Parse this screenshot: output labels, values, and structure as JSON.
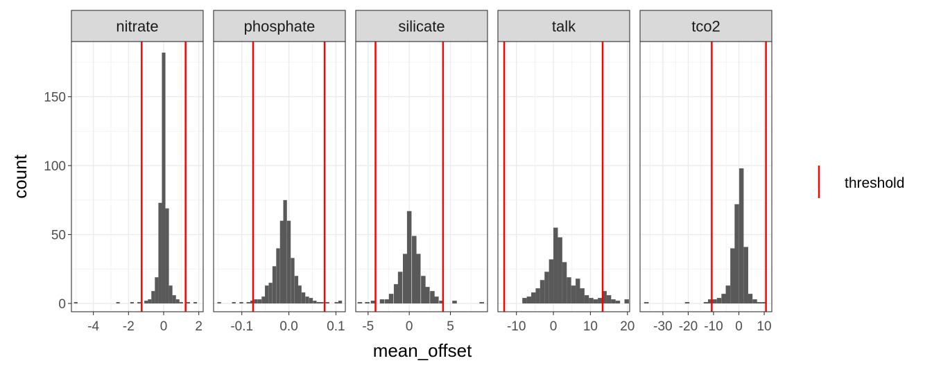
{
  "chart_data": {
    "type": "bar",
    "subtype": "faceted-histogram",
    "xlabel": "mean_offset",
    "ylabel": "count",
    "ylim": [
      -6,
      190
    ],
    "y_ticks": [
      0,
      50,
      100,
      150
    ],
    "y_tick_labels": [
      "0",
      "50",
      "100",
      "150"
    ],
    "bar_color": "#595959",
    "threshold_color": "#ff0000",
    "grid": true,
    "legend": {
      "position": "right",
      "entries": [
        {
          "label": "threshold",
          "symbol": "vertical-line",
          "color": "#ff0000"
        }
      ]
    },
    "facets": [
      {
        "name": "nitrate",
        "xlim": [
          -5.25,
          2.25
        ],
        "x_ticks": [
          -4,
          -2,
          0,
          2
        ],
        "x_tick_labels": [
          "-4",
          "-2",
          "0",
          "2"
        ],
        "thresholds": [
          -1.25,
          1.25
        ],
        "bin_width": 0.2,
        "bins": [
          {
            "x": -5.0,
            "count": 1
          },
          {
            "x": -2.6,
            "count": 1
          },
          {
            "x": -1.8,
            "count": 1
          },
          {
            "x": -1.4,
            "count": 1
          },
          {
            "x": -1.0,
            "count": 2
          },
          {
            "x": -0.8,
            "count": 3
          },
          {
            "x": -0.6,
            "count": 9
          },
          {
            "x": -0.4,
            "count": 19
          },
          {
            "x": -0.2,
            "count": 73
          },
          {
            "x": 0.0,
            "count": 182
          },
          {
            "x": 0.2,
            "count": 69
          },
          {
            "x": 0.4,
            "count": 13
          },
          {
            "x": 0.6,
            "count": 6
          },
          {
            "x": 0.8,
            "count": 3
          },
          {
            "x": 1.0,
            "count": 1
          },
          {
            "x": 1.4,
            "count": 1
          },
          {
            "x": 1.8,
            "count": 1
          }
        ]
      },
      {
        "name": "phosphate",
        "xlim": [
          -0.16,
          0.12
        ],
        "x_ticks": [
          -0.1,
          0.0,
          0.1
        ],
        "x_tick_labels": [
          "-0.1",
          "0.0",
          "0.1"
        ],
        "thresholds": [
          -0.076,
          0.076
        ],
        "bin_width": 0.0078,
        "bins": [
          {
            "x": -0.148,
            "count": 1
          },
          {
            "x": -0.117,
            "count": 1
          },
          {
            "x": -0.101,
            "count": 1
          },
          {
            "x": -0.086,
            "count": 1
          },
          {
            "x": -0.078,
            "count": 2
          },
          {
            "x": -0.07,
            "count": 3
          },
          {
            "x": -0.062,
            "count": 3
          },
          {
            "x": -0.054,
            "count": 5
          },
          {
            "x": -0.047,
            "count": 13
          },
          {
            "x": -0.039,
            "count": 15
          },
          {
            "x": -0.031,
            "count": 27
          },
          {
            "x": -0.023,
            "count": 40
          },
          {
            "x": -0.015,
            "count": 60
          },
          {
            "x": -0.008,
            "count": 75
          },
          {
            "x": 0.0,
            "count": 60
          },
          {
            "x": 0.008,
            "count": 33
          },
          {
            "x": 0.016,
            "count": 20
          },
          {
            "x": 0.023,
            "count": 13
          },
          {
            "x": 0.031,
            "count": 8
          },
          {
            "x": 0.039,
            "count": 5
          },
          {
            "x": 0.047,
            "count": 4
          },
          {
            "x": 0.055,
            "count": 2
          },
          {
            "x": 0.063,
            "count": 1
          },
          {
            "x": 0.07,
            "count": 1
          },
          {
            "x": 0.082,
            "count": 1
          },
          {
            "x": 0.101,
            "count": 1
          },
          {
            "x": 0.109,
            "count": 2
          }
        ]
      },
      {
        "name": "silicate",
        "xlim": [
          -6.5,
          9.5
        ],
        "x_ticks": [
          -5,
          0,
          5
        ],
        "x_tick_labels": [
          "-5",
          "0",
          "5"
        ],
        "thresholds": [
          -4.1,
          4.1
        ],
        "bin_width": 0.55,
        "bins": [
          {
            "x": -6.0,
            "count": 1
          },
          {
            "x": -5.1,
            "count": 1
          },
          {
            "x": -4.4,
            "count": 2
          },
          {
            "x": -3.3,
            "count": 3
          },
          {
            "x": -2.7,
            "count": 3
          },
          {
            "x": -2.2,
            "count": 7
          },
          {
            "x": -1.6,
            "count": 14
          },
          {
            "x": -1.1,
            "count": 23
          },
          {
            "x": -0.5,
            "count": 36
          },
          {
            "x": 0.0,
            "count": 67
          },
          {
            "x": 0.6,
            "count": 49
          },
          {
            "x": 1.1,
            "count": 36
          },
          {
            "x": 1.7,
            "count": 20
          },
          {
            "x": 2.2,
            "count": 12
          },
          {
            "x": 2.8,
            "count": 9
          },
          {
            "x": 3.3,
            "count": 5
          },
          {
            "x": 3.9,
            "count": 2
          },
          {
            "x": 5.5,
            "count": 2
          },
          {
            "x": 8.8,
            "count": 1
          }
        ]
      },
      {
        "name": "talk",
        "xlim": [
          -15,
          20.6
        ],
        "x_ticks": [
          -10,
          0,
          10,
          20
        ],
        "x_tick_labels": [
          "-10",
          "0",
          "10",
          "20"
        ],
        "thresholds": [
          -13.3,
          13.3
        ],
        "bin_width": 1.2,
        "bins": [
          {
            "x": -7.8,
            "count": 4
          },
          {
            "x": -6.6,
            "count": 5
          },
          {
            "x": -5.4,
            "count": 8
          },
          {
            "x": -4.2,
            "count": 11
          },
          {
            "x": -3.0,
            "count": 17
          },
          {
            "x": -1.8,
            "count": 23
          },
          {
            "x": -0.6,
            "count": 32
          },
          {
            "x": 0.6,
            "count": 55
          },
          {
            "x": 1.8,
            "count": 48
          },
          {
            "x": 3.0,
            "count": 30
          },
          {
            "x": 4.2,
            "count": 19
          },
          {
            "x": 5.4,
            "count": 13
          },
          {
            "x": 6.6,
            "count": 18
          },
          {
            "x": 7.8,
            "count": 11
          },
          {
            "x": 9.0,
            "count": 6
          },
          {
            "x": 10.2,
            "count": 4
          },
          {
            "x": 11.4,
            "count": 3
          },
          {
            "x": 12.6,
            "count": 4
          },
          {
            "x": 13.8,
            "count": 9
          },
          {
            "x": 15.0,
            "count": 6
          },
          {
            "x": 16.2,
            "count": 3
          },
          {
            "x": 17.4,
            "count": 2
          },
          {
            "x": 19.8,
            "count": 3
          }
        ]
      },
      {
        "name": "tco2",
        "xlim": [
          -39,
          13
        ],
        "x_ticks": [
          -30,
          -20,
          -10,
          0,
          10
        ],
        "x_tick_labels": [
          "-30",
          "-20",
          "-10",
          "0",
          "10"
        ],
        "thresholds": [
          -10.7,
          10.7
        ],
        "bin_width": 1.77,
        "bins": [
          {
            "x": -36.5,
            "count": 1
          },
          {
            "x": -20.4,
            "count": 1
          },
          {
            "x": -13.0,
            "count": 1
          },
          {
            "x": -11.3,
            "count": 3
          },
          {
            "x": -9.6,
            "count": 3
          },
          {
            "x": -7.8,
            "count": 4
          },
          {
            "x": -6.0,
            "count": 7
          },
          {
            "x": -4.3,
            "count": 13
          },
          {
            "x": -2.5,
            "count": 40
          },
          {
            "x": -0.8,
            "count": 72
          },
          {
            "x": 1.0,
            "count": 98
          },
          {
            "x": 2.8,
            "count": 41
          },
          {
            "x": 4.5,
            "count": 7
          },
          {
            "x": 6.3,
            "count": 3
          },
          {
            "x": 8.0,
            "count": 1
          },
          {
            "x": 9.8,
            "count": 1
          }
        ]
      }
    ]
  }
}
